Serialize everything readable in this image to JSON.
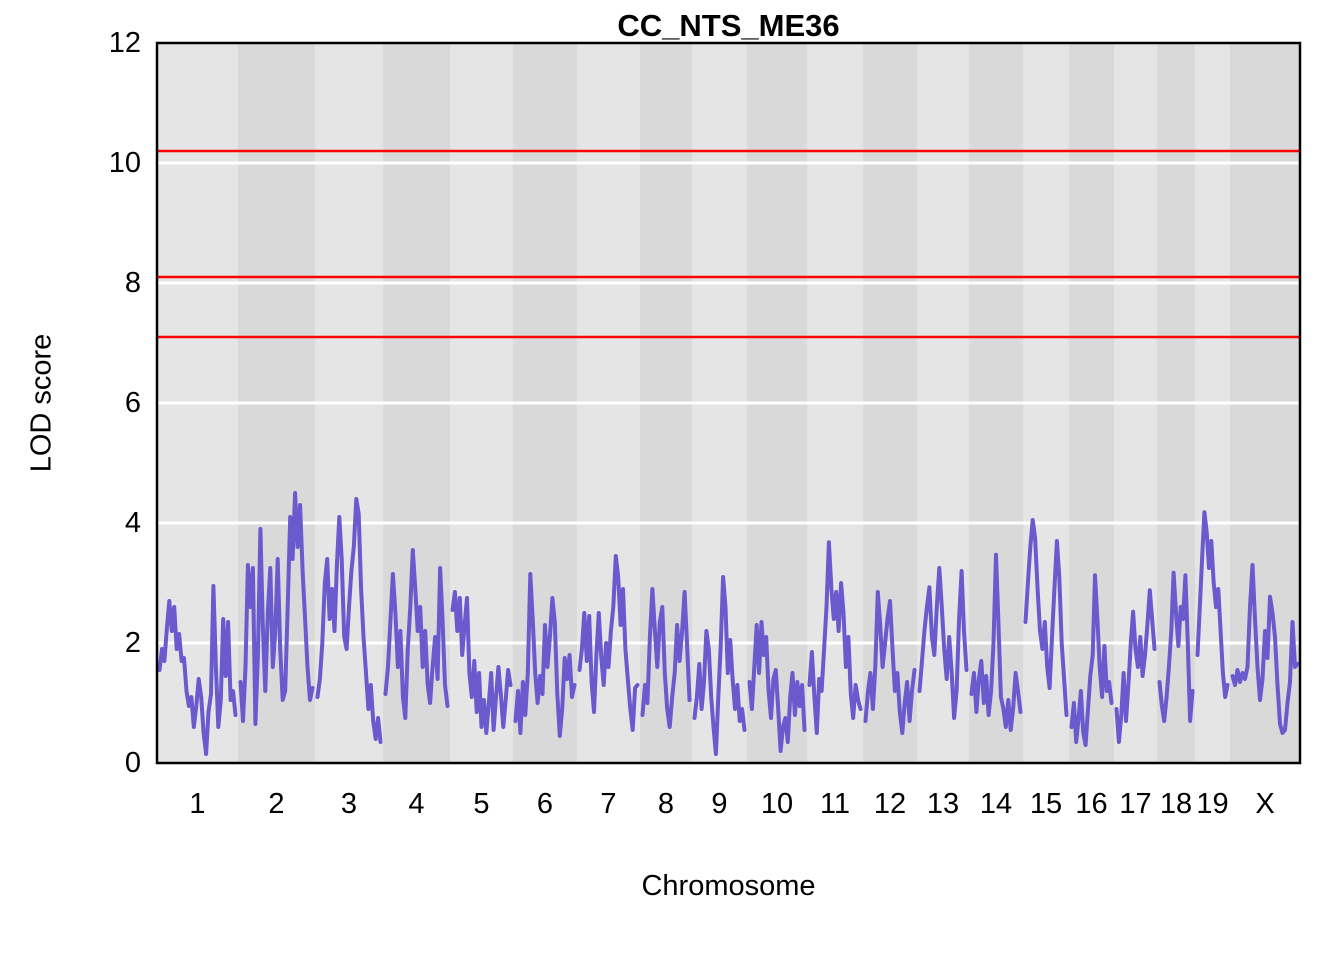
{
  "figure": {
    "title": "CC_NTS_ME36",
    "xlabel": "Chromosome",
    "ylabel": "LOD score"
  },
  "chart_data": {
    "type": "line",
    "title": "CC_NTS_ME36",
    "xlabel": "Chromosome",
    "ylabel": "LOD score",
    "ylim": [
      0,
      12
    ],
    "yticks": [
      0,
      2,
      4,
      6,
      8,
      10,
      12
    ],
    "gridlines_y": [
      2,
      4,
      6,
      8,
      10
    ],
    "grid_on": true,
    "legend": "none",
    "colors": {
      "trace": "#6a5acd",
      "threshold": "#ff0000",
      "grid": "#ffffff",
      "band_light": "#e5e5e5",
      "band_dark": "#d9d9d9",
      "border": "#000000",
      "background": "#ffffff"
    },
    "threshold_lines": [
      10.2,
      8.1,
      7.1
    ],
    "chromosomes": [
      {
        "name": "1",
        "xstart": 157,
        "xend": 238,
        "lod": [
          1.55,
          1.9,
          1.7,
          2.25,
          2.7,
          2.2,
          2.6,
          1.9,
          2.15,
          1.7,
          1.75,
          1.2,
          0.95,
          1.1,
          0.6,
          0.95,
          1.4,
          1.1,
          0.5,
          0.15,
          0.85,
          1.15,
          2.95,
          1.6,
          0.6,
          1.05,
          2.4,
          1.45,
          2.35,
          1.05,
          1.2,
          0.8
        ]
      },
      {
        "name": "2",
        "xstart": 238,
        "xend": 315,
        "lod": [
          1.35,
          0.7,
          1.6,
          3.3,
          2.6,
          3.25,
          0.65,
          1.8,
          3.9,
          2.3,
          1.2,
          2.5,
          3.25,
          1.6,
          2.2,
          3.4,
          1.9,
          1.05,
          1.2,
          2.6,
          4.1,
          3.4,
          4.5,
          3.6,
          4.3,
          3.2,
          2.4,
          1.6,
          1.05,
          1.25
        ]
      },
      {
        "name": "3",
        "xstart": 315,
        "xend": 383,
        "lod": [
          1.1,
          1.4,
          2.0,
          3.0,
          3.4,
          2.4,
          2.9,
          2.2,
          3.3,
          4.1,
          3.4,
          2.1,
          1.9,
          2.6,
          3.2,
          3.6,
          4.4,
          4.15,
          2.9,
          2.1,
          1.5,
          0.9,
          1.3,
          0.7,
          0.4,
          0.75,
          0.35
        ]
      },
      {
        "name": "4",
        "xstart": 383,
        "xend": 450,
        "lod": [
          1.15,
          1.6,
          2.4,
          3.15,
          2.5,
          1.6,
          2.2,
          1.1,
          0.75,
          1.9,
          2.6,
          3.55,
          2.9,
          2.2,
          2.6,
          1.6,
          2.2,
          1.3,
          1.0,
          1.6,
          2.1,
          1.4,
          3.25,
          2.4,
          1.3,
          0.95
        ]
      },
      {
        "name": "5",
        "xstart": 450,
        "xend": 513,
        "lod": [
          2.55,
          2.85,
          2.2,
          2.75,
          1.8,
          2.3,
          2.75,
          1.5,
          1.1,
          1.7,
          0.85,
          1.5,
          0.6,
          1.05,
          0.5,
          1.0,
          1.5,
          0.55,
          1.1,
          1.6,
          1.15,
          0.6,
          1.05,
          1.55,
          1.3
        ]
      },
      {
        "name": "6",
        "xstart": 513,
        "xend": 577,
        "lod": [
          0.7,
          1.2,
          0.5,
          1.35,
          0.8,
          1.5,
          3.15,
          2.4,
          1.5,
          1.0,
          1.45,
          1.15,
          2.3,
          1.6,
          2.1,
          2.75,
          2.35,
          1.15,
          0.45,
          0.9,
          1.75,
          1.4,
          1.8,
          1.1,
          1.3
        ]
      },
      {
        "name": "7",
        "xstart": 577,
        "xend": 640,
        "lod": [
          1.55,
          1.9,
          2.5,
          1.7,
          2.45,
          1.35,
          0.85,
          1.8,
          2.5,
          1.75,
          1.3,
          2.0,
          1.6,
          2.2,
          2.6,
          3.45,
          3.1,
          2.3,
          2.9,
          1.9,
          1.4,
          0.9,
          0.55,
          1.25,
          1.3
        ]
      },
      {
        "name": "8",
        "xstart": 640,
        "xend": 692,
        "lod": [
          0.8,
          1.3,
          1.0,
          2.1,
          2.9,
          2.2,
          1.6,
          2.35,
          2.6,
          1.5,
          0.9,
          0.6,
          1.1,
          1.5,
          2.3,
          1.7,
          2.2,
          2.85,
          2.0,
          1.05
        ]
      },
      {
        "name": "9",
        "xstart": 692,
        "xend": 747,
        "lod": [
          0.75,
          1.1,
          1.65,
          0.9,
          1.35,
          2.2,
          1.9,
          1.1,
          0.6,
          0.15,
          1.1,
          1.95,
          3.1,
          2.6,
          1.5,
          2.05,
          1.4,
          0.9,
          1.3,
          0.7,
          0.9,
          0.55
        ]
      },
      {
        "name": "10",
        "xstart": 747,
        "xend": 807,
        "lod": [
          1.35,
          0.9,
          1.6,
          2.3,
          1.5,
          2.35,
          1.8,
          2.1,
          1.2,
          0.75,
          1.4,
          1.55,
          0.9,
          0.2,
          0.6,
          0.75,
          0.35,
          1.1,
          1.5,
          0.8,
          1.35,
          0.95,
          1.3,
          0.55
        ]
      },
      {
        "name": "11",
        "xstart": 807,
        "xend": 863,
        "lod": [
          1.3,
          1.85,
          1.1,
          0.5,
          1.4,
          1.2,
          1.9,
          2.6,
          3.68,
          2.9,
          2.4,
          2.85,
          2.2,
          3.0,
          2.5,
          1.6,
          2.1,
          1.15,
          0.75,
          1.3,
          1.05,
          0.9
        ]
      },
      {
        "name": "12",
        "xstart": 863,
        "xend": 917,
        "lod": [
          0.7,
          1.2,
          1.5,
          0.9,
          1.6,
          2.85,
          2.3,
          1.6,
          2.0,
          2.4,
          2.7,
          1.9,
          1.2,
          1.5,
          0.85,
          0.5,
          1.0,
          1.35,
          0.7,
          1.2,
          1.55
        ]
      },
      {
        "name": "13",
        "xstart": 917,
        "xend": 969,
        "lod": [
          1.2,
          1.7,
          2.2,
          2.6,
          2.93,
          2.1,
          1.8,
          2.6,
          3.25,
          2.6,
          1.9,
          1.4,
          2.1,
          1.5,
          0.75,
          1.2,
          2.4,
          3.2,
          2.2,
          1.55
        ]
      },
      {
        "name": "14",
        "xstart": 969,
        "xend": 1023,
        "lod": [
          1.15,
          1.5,
          0.85,
          1.4,
          1.7,
          1.0,
          1.45,
          0.8,
          1.2,
          2.0,
          3.47,
          2.3,
          1.1,
          0.9,
          0.6,
          1.05,
          0.55,
          0.9,
          1.5,
          1.2,
          0.85
        ]
      },
      {
        "name": "15",
        "xstart": 1023,
        "xend": 1069,
        "lod": [
          2.35,
          3.0,
          3.6,
          4.05,
          3.75,
          2.9,
          2.2,
          1.9,
          2.35,
          1.6,
          1.25,
          2.1,
          2.9,
          3.7,
          3.1,
          2.0,
          1.4,
          0.8
        ]
      },
      {
        "name": "16",
        "xstart": 1069,
        "xend": 1114,
        "lod": [
          0.6,
          1.0,
          0.35,
          0.75,
          1.2,
          0.5,
          0.3,
          0.9,
          1.45,
          1.8,
          3.13,
          2.4,
          1.6,
          1.1,
          1.95,
          1.2,
          1.35,
          1.0
        ]
      },
      {
        "name": "17",
        "xstart": 1114,
        "xend": 1157,
        "lod": [
          0.9,
          0.35,
          0.8,
          1.5,
          0.7,
          1.3,
          2.0,
          2.52,
          1.9,
          1.6,
          2.1,
          1.45,
          1.8,
          2.3,
          2.88,
          2.4,
          1.9
        ]
      },
      {
        "name": "18",
        "xstart": 1157,
        "xend": 1195,
        "lod": [
          1.35,
          0.95,
          0.7,
          1.1,
          1.6,
          2.2,
          3.17,
          2.5,
          1.95,
          2.6,
          2.4,
          3.13,
          2.0,
          0.7,
          1.2
        ]
      },
      {
        "name": "19",
        "xstart": 1195,
        "xend": 1230,
        "lod": [
          1.8,
          2.6,
          3.4,
          4.18,
          3.85,
          3.25,
          3.7,
          3.0,
          2.6,
          2.9,
          2.2,
          1.5,
          1.1,
          1.3
        ]
      },
      {
        "name": "X",
        "xstart": 1230,
        "xend": 1300,
        "lod": [
          1.45,
          1.3,
          1.55,
          1.35,
          1.5,
          1.4,
          1.6,
          2.6,
          3.3,
          2.4,
          1.6,
          1.05,
          1.4,
          2.2,
          1.75,
          2.77,
          2.5,
          2.1,
          1.3,
          0.65,
          0.5,
          0.55,
          1.0,
          1.35,
          2.35,
          1.6,
          1.65
        ]
      }
    ]
  }
}
